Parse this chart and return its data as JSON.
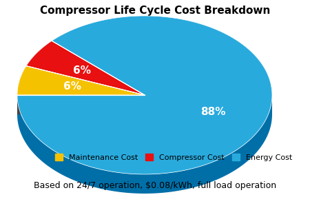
{
  "title": "Compressor Life Cycle Cost Breakdown",
  "subtitle": "Based on 24/7 operation, $0.08/kWh, full load operation",
  "slices": [
    6,
    6,
    88
  ],
  "labels": [
    "6%",
    "6%",
    "88%"
  ],
  "legend_labels": [
    "Maintenance Cost",
    "Compressor Cost",
    "Energy Cost"
  ],
  "colors": [
    "#F5C200",
    "#E81010",
    "#29AADD"
  ],
  "shadow_colors": [
    "#B08C00",
    "#A00000",
    "#006FA8"
  ],
  "title_fontsize": 11,
  "label_fontsize": 11,
  "subtitle_fontsize": 9,
  "legend_fontsize": 8,
  "background_color": "#FFFFFF"
}
